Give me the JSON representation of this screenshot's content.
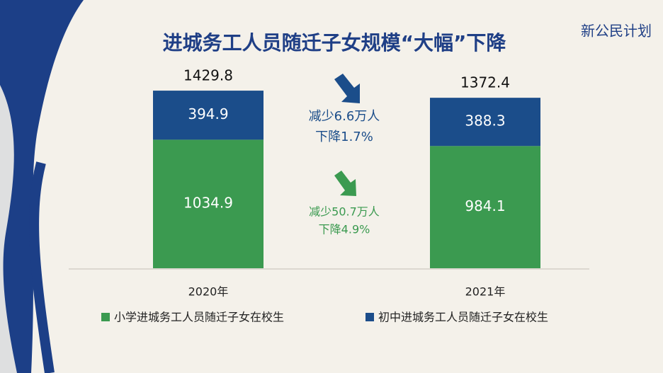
{
  "chart_data": {
    "type": "stacked_bar",
    "title": "进城务工人员随迁子女规模“大幅”下降",
    "logo": "新公民计划",
    "categories": [
      "2020年",
      "2021年"
    ],
    "series": [
      {
        "name": "小学进城务工人员随迁子女在校生",
        "color": "#3b9a50",
        "values": [
          1034.9,
          984.1
        ]
      },
      {
        "name": "初中进城务工人员随迁子女在校生",
        "color": "#1b4d8a",
        "values": [
          394.9,
          388.3
        ]
      }
    ],
    "totals": [
      1429.8,
      1372.4
    ],
    "annotations": [
      {
        "text": [
          "减少6.6万人",
          "下降1.7%"
        ],
        "color": "#1b4d8a"
      },
      {
        "text": [
          "减少50.7万人",
          "下降4.9%"
        ],
        "color": "#3b9a50"
      }
    ]
  }
}
